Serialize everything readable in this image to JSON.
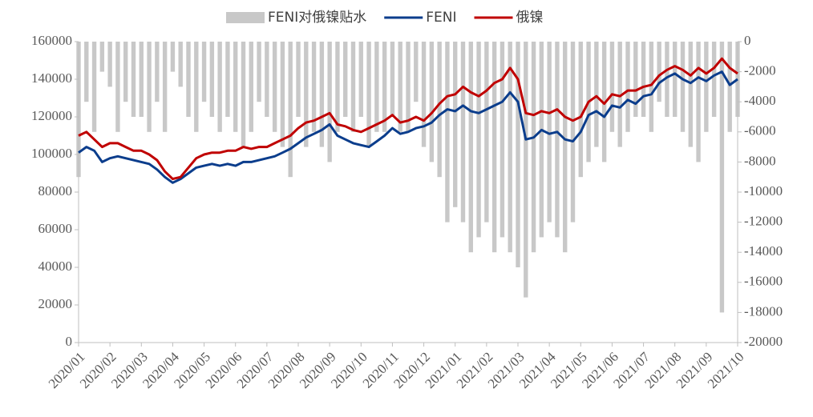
{
  "chart_data": {
    "type": "bar-line",
    "categories": [
      "2020/01",
      null,
      null,
      null,
      "2020/02",
      null,
      null,
      null,
      "2020/03",
      null,
      null,
      null,
      "2020/04",
      null,
      null,
      null,
      "2020/05",
      null,
      null,
      null,
      "2020/06",
      null,
      null,
      null,
      "2020/07",
      null,
      null,
      null,
      "2020/08",
      null,
      null,
      null,
      "2020/09",
      null,
      null,
      null,
      "2020/10",
      null,
      null,
      null,
      "2020/11",
      null,
      null,
      null,
      "2020/12",
      null,
      null,
      null,
      "2021/01",
      null,
      null,
      null,
      "2021/02",
      null,
      null,
      null,
      "2021/03",
      null,
      null,
      null,
      "2021/04",
      null,
      null,
      null,
      "2021/05",
      null,
      null,
      null,
      "2021/06",
      null,
      null,
      null,
      "2021/07",
      null,
      null,
      null,
      "2021/08",
      null,
      null,
      null,
      "2021/09",
      null,
      null,
      null,
      "2021/10"
    ],
    "series": [
      {
        "name": "FENI对俄镍贴水",
        "color": "#c8c8c8",
        "axis": "y2",
        "kind": "bar",
        "values": [
          -9000,
          -4000,
          -6000,
          -2000,
          -3000,
          -6000,
          -4000,
          -5000,
          -5000,
          -6000,
          -4000,
          -6000,
          -2000,
          -3000,
          -5000,
          -6000,
          -4000,
          -5000,
          -6000,
          -5000,
          -6000,
          -7000,
          -6000,
          -4000,
          -5000,
          -6000,
          -7000,
          -9000,
          -5000,
          -7000,
          -6000,
          -7000,
          -8000,
          -6000,
          -5000,
          -6000,
          -5000,
          -7000,
          -6000,
          -6000,
          -5000,
          -6000,
          -6000,
          -4000,
          -7000,
          -8000,
          -9000,
          -12000,
          -11000,
          -12000,
          -14000,
          -13000,
          -12000,
          -14000,
          -13000,
          -14000,
          -15000,
          -17000,
          -14000,
          -13000,
          -12000,
          -13000,
          -14000,
          -12000,
          -9000,
          -8000,
          -7000,
          -8000,
          -6000,
          -7000,
          -6000,
          -5000,
          -5000,
          -6000,
          -4000,
          -5000,
          -5000,
          -6000,
          -7000,
          -8000,
          -6000,
          -5000,
          -18000,
          -6000,
          -5000
        ]
      },
      {
        "name": "FENI",
        "color": "#0b3d8c",
        "kind": "line",
        "values": [
          101000,
          104000,
          102000,
          96000,
          98000,
          99000,
          98000,
          97000,
          96000,
          95000,
          92000,
          88000,
          85000,
          87000,
          90000,
          93000,
          94000,
          95000,
          94000,
          95000,
          94000,
          96000,
          96000,
          97000,
          98000,
          99000,
          101000,
          103000,
          106000,
          109000,
          111000,
          113000,
          116000,
          110000,
          108000,
          106000,
          105000,
          104000,
          107000,
          110000,
          114000,
          111000,
          112000,
          114000,
          115000,
          117000,
          121000,
          124000,
          123000,
          126000,
          123000,
          122000,
          124000,
          126000,
          128000,
          133000,
          128000,
          108000,
          109000,
          113000,
          111000,
          112000,
          108000,
          107000,
          112000,
          121000,
          123000,
          120000,
          126000,
          125000,
          129000,
          127000,
          131000,
          132000,
          138000,
          141000,
          143000,
          140000,
          138000,
          141000,
          139000,
          142000,
          144000,
          137000,
          140000
        ]
      },
      {
        "name": "俄镍",
        "color": "#c00000",
        "kind": "line",
        "values": [
          110000,
          112000,
          108000,
          104000,
          106000,
          106000,
          104000,
          102000,
          102000,
          100000,
          97000,
          91000,
          87000,
          88000,
          93000,
          98000,
          100000,
          101000,
          101000,
          102000,
          102000,
          104000,
          103000,
          104000,
          104000,
          106000,
          108000,
          110000,
          114000,
          117000,
          118000,
          120000,
          122000,
          116000,
          115000,
          113000,
          112000,
          114000,
          116000,
          118000,
          121000,
          117000,
          118000,
          120000,
          118000,
          122000,
          127000,
          131000,
          132000,
          136000,
          133000,
          131000,
          134000,
          138000,
          140000,
          146000,
          140000,
          122000,
          121000,
          123000,
          122000,
          124000,
          120000,
          118000,
          120000,
          128000,
          131000,
          127000,
          132000,
          131000,
          134000,
          134000,
          136000,
          137000,
          142000,
          145000,
          147000,
          145000,
          142000,
          146000,
          143000,
          146000,
          151000,
          146000,
          143000
        ]
      }
    ],
    "ylim": [
      0,
      160000
    ],
    "yticks": [
      0,
      20000,
      40000,
      60000,
      80000,
      100000,
      120000,
      140000,
      160000
    ],
    "y2lim": [
      -20000,
      0
    ],
    "y2ticks": [
      0,
      -2000,
      -4000,
      -6000,
      -8000,
      -10000,
      -12000,
      -14000,
      -16000,
      -18000,
      -20000
    ]
  }
}
